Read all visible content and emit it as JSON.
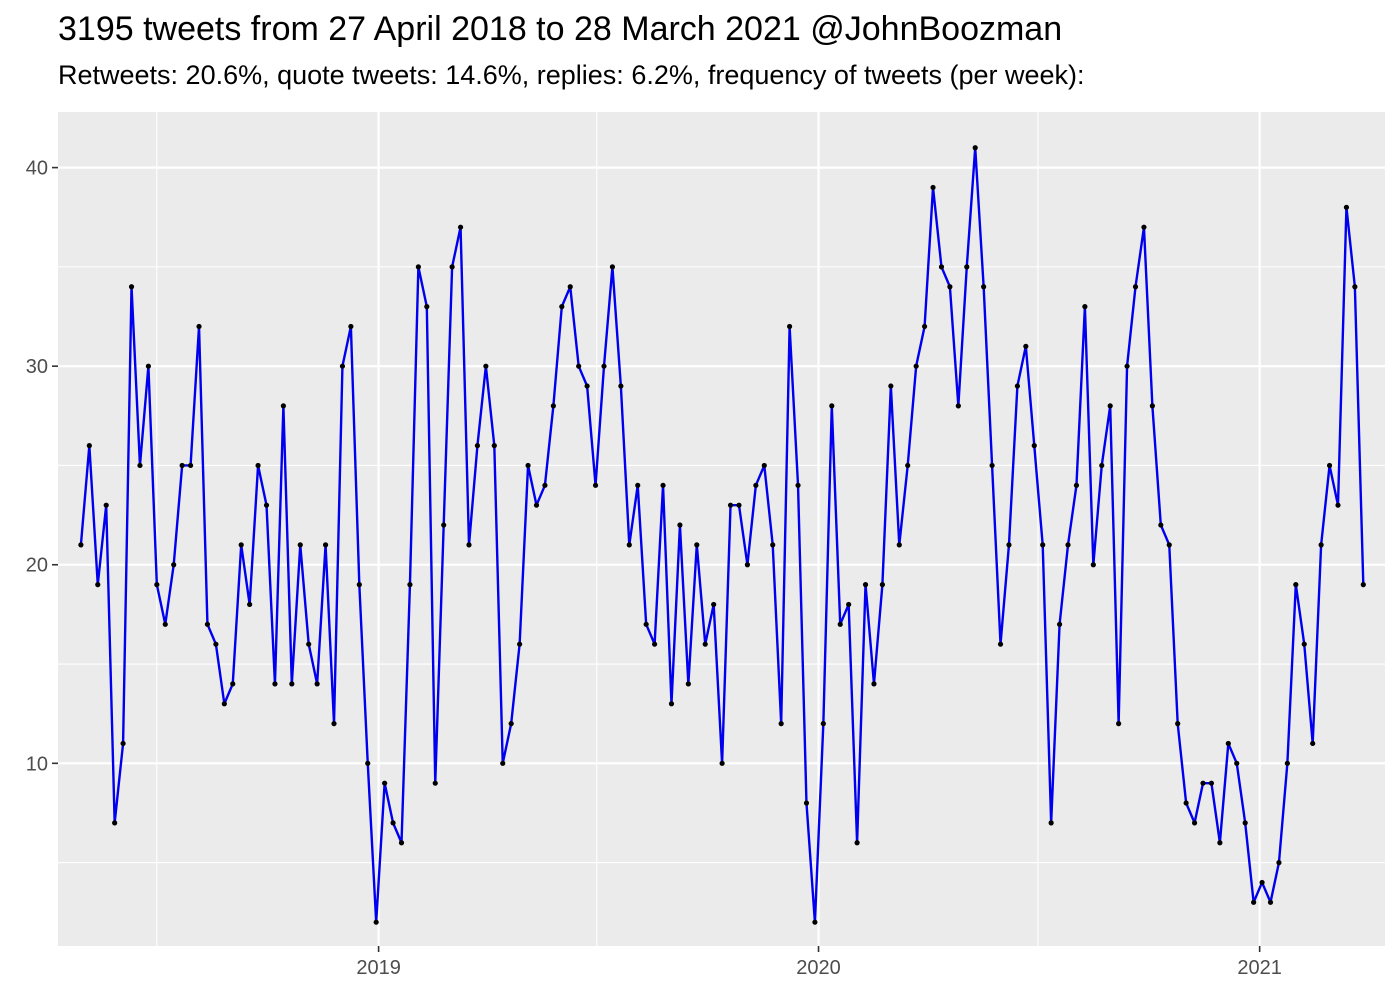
{
  "chart_data": {
    "type": "line",
    "title": "3195 tweets from 27 April 2018 to 28 March 2021 @JohnBoozman",
    "subtitle": "Retweets: 20.6%, quote tweets: 14.6%, replies: 6.2%, frequency of tweets (per week):",
    "xlabel": "",
    "ylabel": "",
    "x_ticks": [
      "2019",
      "2020",
      "2021"
    ],
    "y_ticks": [
      10,
      20,
      30,
      40
    ],
    "xlim": [
      "2018-04-10",
      "2021-04-15"
    ],
    "ylim": [
      0.8,
      42.8
    ],
    "grid": true,
    "line_color": "#0000ee",
    "point_color": "#000000",
    "panel_color": "#ebebeb",
    "series": [
      {
        "x": [
          "2018-04-29",
          "2018-05-06",
          "2018-05-13",
          "2018-05-20",
          "2018-05-27",
          "2018-06-03",
          "2018-06-10",
          "2018-06-17",
          "2018-06-24",
          "2018-07-01",
          "2018-07-08",
          "2018-07-15",
          "2018-07-22",
          "2018-07-29",
          "2018-08-05",
          "2018-08-12",
          "2018-08-19",
          "2018-08-26",
          "2018-09-02",
          "2018-09-09",
          "2018-09-16",
          "2018-09-23",
          "2018-09-30",
          "2018-10-07",
          "2018-10-14",
          "2018-10-21",
          "2018-10-28",
          "2018-11-04",
          "2018-11-11",
          "2018-11-18",
          "2018-11-25",
          "2018-12-02",
          "2018-12-09",
          "2018-12-16",
          "2018-12-23",
          "2018-12-30",
          "2019-01-06",
          "2019-01-13",
          "2019-01-20",
          "2019-01-27",
          "2019-02-03",
          "2019-02-10",
          "2019-02-17",
          "2019-02-24",
          "2019-03-03",
          "2019-03-10",
          "2019-03-17",
          "2019-03-24",
          "2019-03-31",
          "2019-04-07",
          "2019-04-14",
          "2019-04-21",
          "2019-04-28",
          "2019-05-05",
          "2019-05-12",
          "2019-05-19",
          "2019-05-26",
          "2019-06-02",
          "2019-06-09",
          "2019-06-16",
          "2019-06-23",
          "2019-06-30",
          "2019-07-07",
          "2019-07-14",
          "2019-07-21",
          "2019-07-28",
          "2019-08-04",
          "2019-08-11",
          "2019-08-18",
          "2019-08-25",
          "2019-09-01",
          "2019-09-08",
          "2019-09-15",
          "2019-09-22",
          "2019-09-29",
          "2019-10-06",
          "2019-10-13",
          "2019-10-20",
          "2019-10-27",
          "2019-11-03",
          "2019-11-10",
          "2019-11-17",
          "2019-11-24",
          "2019-12-01",
          "2019-12-08",
          "2019-12-15",
          "2019-12-22",
          "2019-12-29",
          "2020-01-05",
          "2020-01-12",
          "2020-01-19",
          "2020-01-26",
          "2020-02-02",
          "2020-02-09",
          "2020-02-16",
          "2020-02-23",
          "2020-03-01",
          "2020-03-08",
          "2020-03-15",
          "2020-03-22",
          "2020-03-29",
          "2020-04-05",
          "2020-04-12",
          "2020-04-19",
          "2020-04-26",
          "2020-05-03",
          "2020-05-10",
          "2020-05-17",
          "2020-05-24",
          "2020-05-31",
          "2020-06-07",
          "2020-06-14",
          "2020-06-21",
          "2020-06-28",
          "2020-07-05",
          "2020-07-12",
          "2020-07-19",
          "2020-07-26",
          "2020-08-02",
          "2020-08-09",
          "2020-08-16",
          "2020-08-23",
          "2020-08-30",
          "2020-09-06",
          "2020-09-13",
          "2020-09-20",
          "2020-09-27",
          "2020-10-04",
          "2020-10-11",
          "2020-10-18",
          "2020-10-25",
          "2020-11-01",
          "2020-11-08",
          "2020-11-15",
          "2020-11-22",
          "2020-11-29",
          "2020-12-06",
          "2020-12-13",
          "2020-12-20",
          "2020-12-27",
          "2021-01-03",
          "2021-01-10",
          "2021-01-17",
          "2021-01-24",
          "2021-01-31",
          "2021-02-07",
          "2021-02-14",
          "2021-02-21",
          "2021-02-28",
          "2021-03-07",
          "2021-03-14",
          "2021-03-21",
          "2021-03-28"
        ],
        "values": [
          21,
          26,
          19,
          23,
          7,
          11,
          34,
          25,
          30,
          19,
          17,
          20,
          25,
          25,
          32,
          17,
          16,
          13,
          14,
          21,
          18,
          25,
          23,
          14,
          28,
          14,
          21,
          16,
          14,
          21,
          12,
          30,
          32,
          19,
          10,
          2,
          9,
          7,
          6,
          19,
          35,
          33,
          9,
          22,
          35,
          37,
          21,
          26,
          30,
          26,
          10,
          12,
          16,
          25,
          23,
          24,
          28,
          33,
          34,
          30,
          29,
          24,
          30,
          35,
          29,
          21,
          24,
          17,
          16,
          24,
          13,
          22,
          14,
          21,
          16,
          18,
          10,
          23,
          23,
          20,
          24,
          25,
          21,
          12,
          32,
          24,
          8,
          2,
          12,
          28,
          17,
          18,
          6,
          19,
          14,
          19,
          29,
          21,
          25,
          30,
          32,
          39,
          35,
          34,
          28,
          35,
          41,
          34,
          25,
          16,
          21,
          29,
          31,
          26,
          21,
          7,
          17,
          21,
          24,
          33,
          20,
          25,
          28,
          12,
          30,
          34,
          37,
          28,
          22,
          21,
          12,
          8,
          7,
          9,
          9,
          6,
          11,
          10,
          7,
          3,
          4,
          3,
          5,
          10,
          19,
          16,
          11,
          21,
          25,
          23,
          38,
          34,
          19
        ]
      }
    ]
  }
}
